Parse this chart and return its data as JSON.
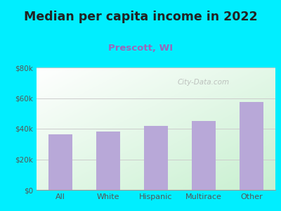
{
  "title": "Median per capita income in 2022",
  "subtitle": "Prescott, WI",
  "categories": [
    "All",
    "White",
    "Hispanic",
    "Multirace",
    "Other"
  ],
  "values": [
    36500,
    38000,
    42000,
    45000,
    57500
  ],
  "bar_color": "#b8a8d8",
  "title_fontsize": 12.5,
  "subtitle_fontsize": 9.5,
  "subtitle_color": "#9966bb",
  "title_color": "#222222",
  "tick_color": "#555555",
  "background_outer": "#00eeff",
  "ylim": [
    0,
    80000
  ],
  "yticks": [
    0,
    20000,
    40000,
    60000,
    80000
  ],
  "ytick_labels": [
    "$0",
    "$20k",
    "$40k",
    "$60k",
    "$80k"
  ],
  "watermark": "City-Data.com",
  "grid_color": "#cccccc",
  "grad_top": "#f0fdf0",
  "grad_bottom": "#e0fdf0"
}
